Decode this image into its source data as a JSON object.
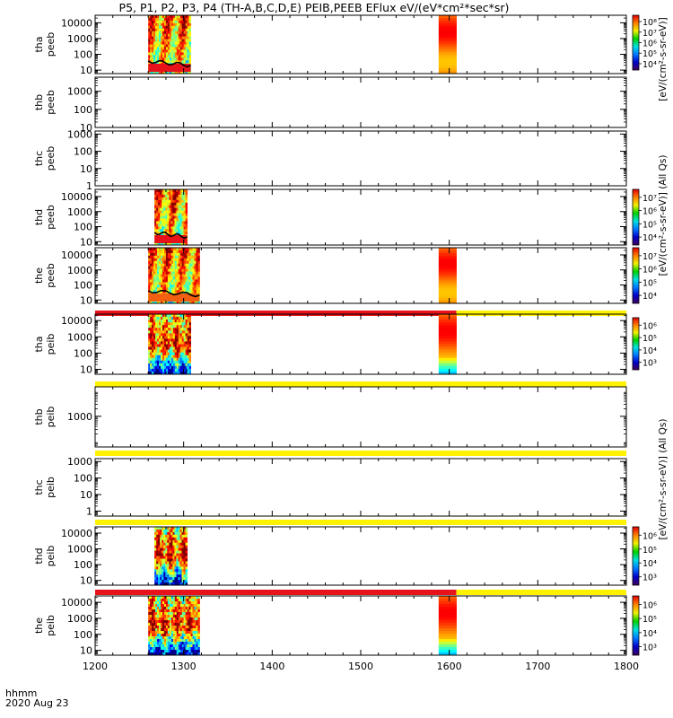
{
  "title": "P5, P1, P2, P3, P4 (TH-A,B,C,D,E) PEIB,PEEB EFlux eV/(eV*cm²*sec*sr)",
  "footer": {
    "line1": "hhmm",
    "line2": "2020 Aug 23"
  },
  "colors": {
    "frame": "#000000",
    "red_bar": "#e8121a",
    "yellow_bar": "#fff200",
    "orange_band": "#f06010"
  },
  "chart_data": {
    "type": "heatmap",
    "x_axis": {
      "range": [
        1200,
        1800
      ],
      "ticks": [
        1200,
        1300,
        1400,
        1500,
        1600,
        1700,
        1800
      ],
      "minor_step": 20
    },
    "colorbar_labels": [
      "[eV/(cm²-s-sr-eV)]",
      "[eV/(cm²-s-sr-eV)] (All Qs)",
      "[eV/(cm²-s-sr-eV)] (All Qs)"
    ],
    "panels": [
      {
        "label1": "tha",
        "label2": "peeb",
        "ylim": [
          6,
          30000
        ],
        "yticks": [
          "10",
          "100",
          "1000",
          "10000"
        ],
        "colorbar_ticks": [
          "10⁴",
          "10⁵",
          "10⁶",
          "10⁷",
          "10⁸"
        ],
        "data_blocks": [
          [
            1260,
            1308
          ],
          [
            1588,
            1608
          ]
        ]
      },
      {
        "label1": "thb",
        "label2": "peeb",
        "ylim": [
          10,
          6000
        ],
        "yticks": [
          "10",
          "100",
          "1000"
        ],
        "data_blocks": []
      },
      {
        "label1": "thc",
        "label2": "peeb",
        "ylim": [
          1,
          1500
        ],
        "yticks": [
          "1",
          "10",
          "100",
          "1000"
        ],
        "data_blocks": []
      },
      {
        "label1": "thd",
        "label2": "peeb",
        "ylim": [
          6,
          30000
        ],
        "yticks": [
          "10",
          "100",
          "1000",
          "10000"
        ],
        "colorbar_ticks": [
          "10⁴",
          "10⁵",
          "10⁶",
          "10⁷"
        ],
        "data_blocks": [
          [
            1267,
            1304
          ]
        ]
      },
      {
        "label1": "the",
        "label2": "peeb",
        "ylim": [
          6,
          30000
        ],
        "yticks": [
          "10",
          "100",
          "1000",
          "10000"
        ],
        "colorbar_ticks": [
          "10⁴",
          "10⁵",
          "10⁶",
          "10⁷"
        ],
        "data_blocks": [
          [
            1260,
            1318
          ],
          [
            1588,
            1608
          ]
        ]
      },
      {
        "label1": "tha",
        "label2": "peib",
        "ylim": [
          5,
          25000
        ],
        "yticks": [
          "10",
          "100",
          "1000",
          "10000"
        ],
        "colorbar_ticks": [
          "10³",
          "10⁴",
          "10⁵",
          "10⁶"
        ],
        "data_blocks": [
          [
            1260,
            1308
          ],
          [
            1588,
            1608
          ]
        ]
      },
      {
        "label1": "thb",
        "label2": "peib",
        "ylim": [
          60,
          15000
        ],
        "yticks": [
          "1000"
        ],
        "data_blocks": []
      },
      {
        "label1": "thc",
        "label2": "peib",
        "ylim": [
          0.5,
          1500
        ],
        "yticks": [
          "1",
          "10",
          "100",
          "1000"
        ],
        "data_blocks": []
      },
      {
        "label1": "thd",
        "label2": "peib",
        "ylim": [
          5,
          25000
        ],
        "yticks": [
          "10",
          "100",
          "1000",
          "10000"
        ],
        "colorbar_ticks": [
          "10³",
          "10⁴",
          "10⁵",
          "10⁶"
        ],
        "data_blocks": [
          [
            1267,
            1304
          ]
        ]
      },
      {
        "label1": "the",
        "label2": "peib",
        "ylim": [
          5,
          25000
        ],
        "yticks": [
          "10",
          "100",
          "1000",
          "10000"
        ],
        "colorbar_ticks": [
          "10³",
          "10⁴",
          "10⁵",
          "10⁶"
        ],
        "data_blocks": [
          [
            1260,
            1318
          ],
          [
            1588,
            1608
          ]
        ]
      }
    ]
  }
}
